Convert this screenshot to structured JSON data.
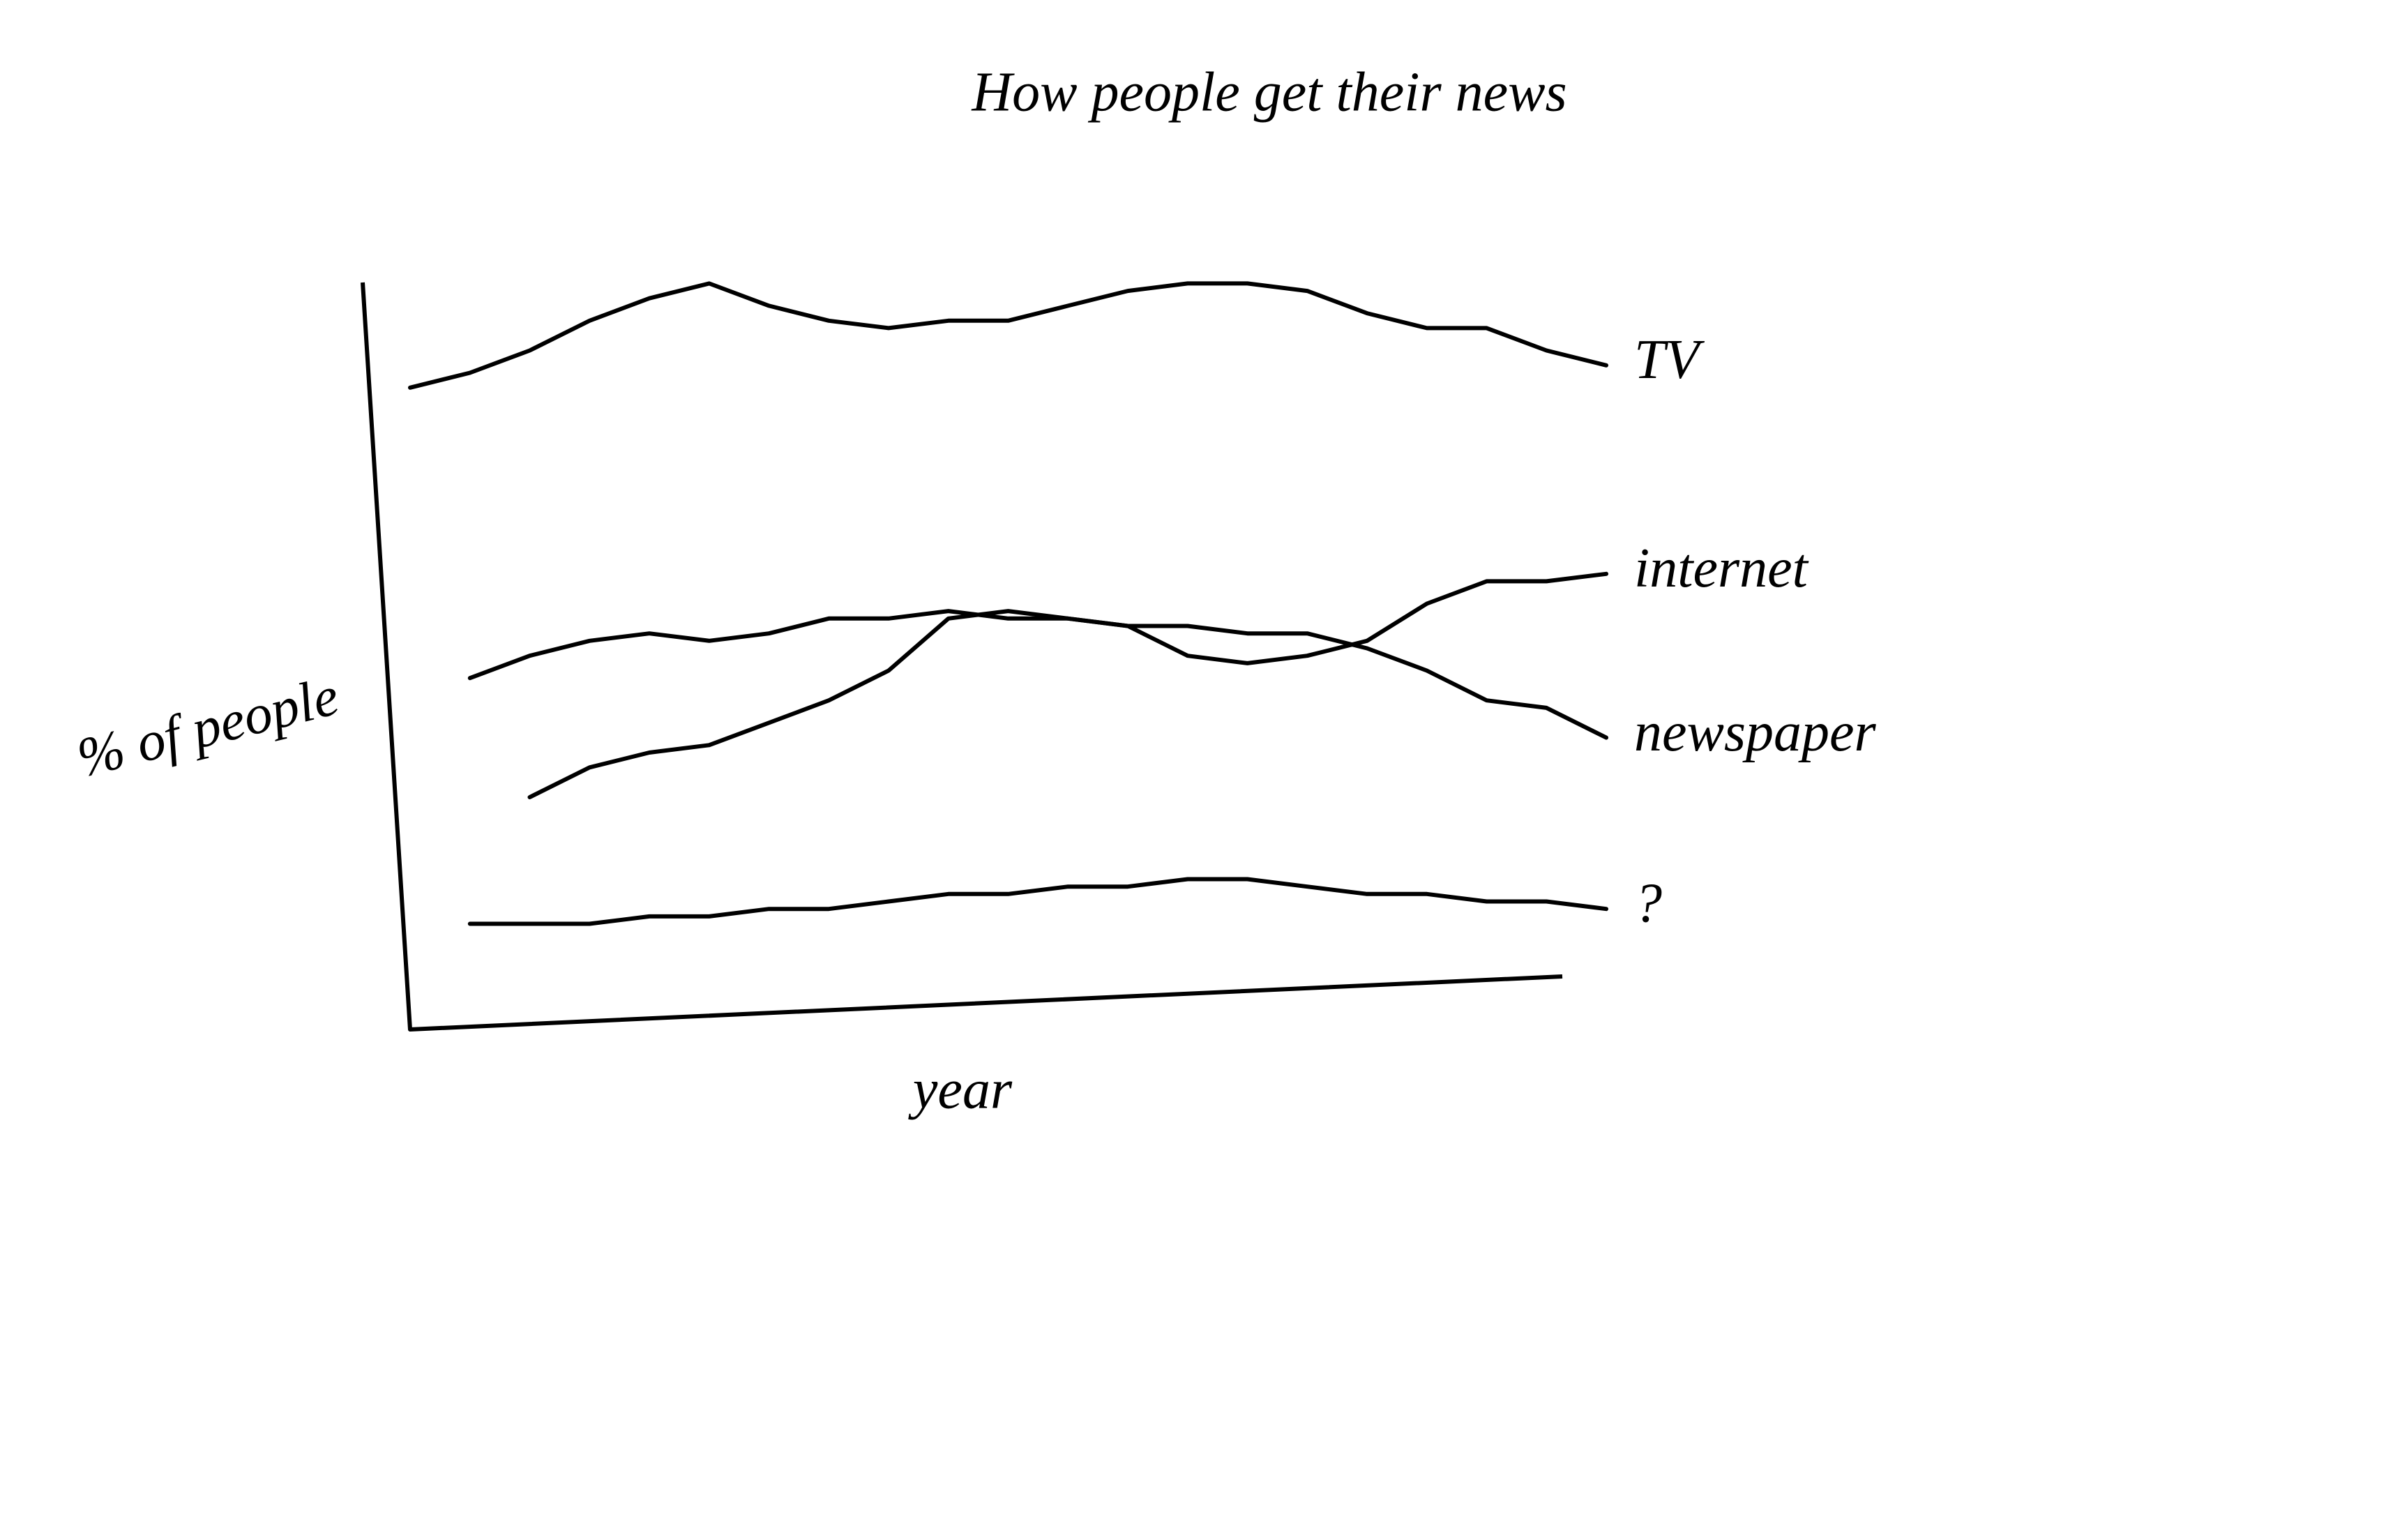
{
  "chart_data": {
    "type": "line",
    "title": "How people get their news",
    "x_label": "year",
    "y_label": "% of people",
    "x": [
      0,
      5,
      10,
      15,
      20,
      25,
      30,
      35,
      40,
      45,
      50,
      55,
      60,
      65,
      70,
      75,
      80,
      85,
      90,
      95,
      100
    ],
    "xlim": [
      0,
      100
    ],
    "ylim": [
      0,
      105
    ],
    "series": [
      {
        "name": "TV",
        "color": "#000000",
        "values": [
          86,
          88,
          91,
          95,
          98,
          100,
          97,
          95,
          94,
          95,
          95,
          97,
          99,
          100,
          100,
          99,
          96,
          94,
          94,
          91,
          89
        ]
      },
      {
        "name": "internet",
        "color": "#000000",
        "values": [
          null,
          null,
          31,
          35,
          37,
          38,
          41,
          44,
          48,
          55,
          56,
          55,
          54,
          50,
          49,
          50,
          52,
          57,
          60,
          60,
          61
        ]
      },
      {
        "name": "newspaper",
        "color": "#000000",
        "values": [
          null,
          47,
          50,
          52,
          53,
          52,
          53,
          55,
          55,
          56,
          55,
          55,
          54,
          54,
          53,
          53,
          51,
          48,
          44,
          43,
          39
        ]
      },
      {
        "name": "?",
        "color": "#000000",
        "values": [
          null,
          14,
          14,
          14,
          15,
          15,
          16,
          16,
          17,
          18,
          18,
          19,
          19,
          20,
          20,
          19,
          18,
          18,
          17,
          17,
          16
        ]
      }
    ]
  }
}
